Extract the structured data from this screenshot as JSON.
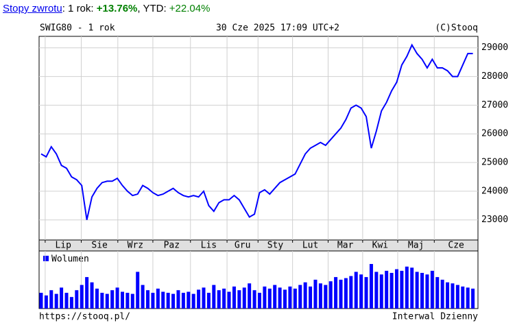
{
  "header": {
    "link": "Stopy zwrotu",
    "sep1": ": 1 rok: ",
    "ret1y": "+13.76%",
    "sep2": ", YTD: ",
    "ytd": "+22.04%"
  },
  "chart_data": {
    "type": "line",
    "title": "SWIG80 - 1 rok",
    "subtitle": "30 Cze 2025 17:09 UTC+2",
    "credit": "(C)Stooq",
    "color": "#0000ff",
    "grid": true,
    "x": [
      0,
      1,
      2,
      3,
      4,
      5,
      6,
      7,
      8,
      9,
      10,
      11,
      12,
      13,
      14,
      15,
      16,
      17,
      18,
      19,
      20,
      21,
      22,
      23,
      24,
      25,
      26,
      27,
      28,
      29,
      30,
      31,
      32,
      33,
      34,
      35,
      36,
      37,
      38,
      39,
      40,
      41,
      42,
      43,
      44,
      45,
      46,
      47,
      48,
      49,
      50,
      51,
      52,
      53,
      54,
      55,
      56,
      57,
      58,
      59,
      60,
      61,
      62,
      63,
      64,
      65,
      66,
      67,
      68,
      69,
      70,
      71,
      72,
      73,
      74,
      75,
      76,
      77,
      78,
      79,
      80,
      81,
      82,
      83,
      84,
      85
    ],
    "values": [
      25300,
      25200,
      25550,
      25300,
      24900,
      24800,
      24500,
      24400,
      24200,
      23000,
      23800,
      24100,
      24300,
      24350,
      24350,
      24450,
      24200,
      24000,
      23850,
      23900,
      24200,
      24100,
      23950,
      23850,
      23900,
      24000,
      24100,
      23950,
      23850,
      23800,
      23850,
      23800,
      24000,
      23500,
      23300,
      23600,
      23700,
      23700,
      23850,
      23700,
      23400,
      23100,
      23200,
      23950,
      24050,
      23900,
      24100,
      24300,
      24400,
      24500,
      24600,
      24950,
      25300,
      25500,
      25600,
      25700,
      25600,
      25800,
      26000,
      26200,
      26500,
      26900,
      27000,
      26900,
      26600,
      25500,
      26100,
      26800,
      27100,
      27500,
      27800,
      28400,
      28700,
      29100,
      28800,
      28600,
      28300,
      28600,
      28300,
      28300,
      28200,
      28000,
      28000,
      28400,
      28800,
      28800
    ],
    "xlim": [
      -0.4,
      86
    ],
    "xticks": [
      {
        "value": 0.8,
        "label": "Lip"
      },
      {
        "value": 7.9,
        "label": "Sie"
      },
      {
        "value": 15.1,
        "label": "Wrz"
      },
      {
        "value": 22,
        "label": "Paz"
      },
      {
        "value": 29.4,
        "label": "Lis"
      },
      {
        "value": 36.6,
        "label": "Gru"
      },
      {
        "value": 42.7,
        "label": "Sty"
      },
      {
        "value": 49.5,
        "label": "Lut"
      },
      {
        "value": 56.5,
        "label": "Mar"
      },
      {
        "value": 63.3,
        "label": "Kwi"
      },
      {
        "value": 70.2,
        "label": "Maj"
      },
      {
        "value": 77.4,
        "label": "Cze"
      }
    ],
    "ylim": [
      22300,
      29400
    ],
    "yticks": [
      23000,
      24000,
      25000,
      26000,
      27000,
      28000,
      29000
    ],
    "volume": {
      "name": "Wolumen",
      "color": "#0000ff",
      "values": [
        30,
        25,
        35,
        28,
        40,
        30,
        22,
        35,
        45,
        60,
        50,
        38,
        30,
        28,
        35,
        40,
        32,
        30,
        28,
        70,
        45,
        35,
        30,
        38,
        32,
        30,
        28,
        35,
        30,
        32,
        28,
        36,
        40,
        30,
        45,
        35,
        38,
        32,
        42,
        35,
        40,
        48,
        35,
        30,
        42,
        38,
        45,
        40,
        36,
        42,
        38,
        45,
        50,
        42,
        55,
        48,
        45,
        52,
        60,
        55,
        58,
        62,
        70,
        65,
        60,
        85,
        70,
        65,
        72,
        68,
        75,
        72,
        80,
        78,
        70,
        68,
        65,
        72,
        60,
        55,
        50,
        48,
        45,
        42,
        40,
        38
      ]
    },
    "footer_left": "https://stooq.pl/",
    "footer_right": "Interwal Dzienny"
  }
}
